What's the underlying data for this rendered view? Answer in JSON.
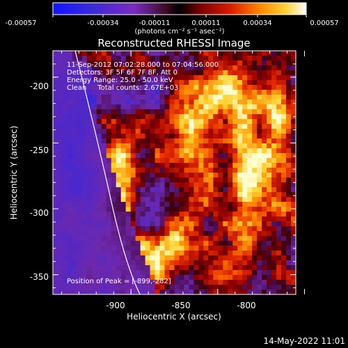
{
  "colorbar": {
    "ticks": [
      "-0.00057",
      "-0.00034",
      "-0.00011",
      "0.00011",
      "0.00034",
      "0.00057"
    ],
    "unit_label": "(photons cm⁻² s⁻¹ asec⁻²)"
  },
  "title": "Reconstructed RHESSI Image",
  "info": {
    "time_range": "11-Sep-2012 07:02:28.000 to 07:04:56.000",
    "detectors": "Detectors: 3F 5F 6F 7F 8F, Att 0",
    "energy": "Energy Range: 25.0 - 50.0 keV",
    "clean": "Clean     Total counts: 2.67E+03"
  },
  "peak_label": "Position of Peak = [-899,-282]",
  "axes": {
    "xlabel": "Heliocentric X (arcsec)",
    "ylabel": "Heliocentric Y (arcsec)",
    "xticks": [
      -900,
      -850,
      -800
    ],
    "yticks": [
      -200,
      -250,
      -300,
      -350
    ],
    "xlim": [
      -945,
      -805
    ],
    "ylim": [
      -365,
      -180
    ]
  },
  "footer_date": "14-May-2022 11:01",
  "colors": {
    "background": "#000000",
    "limb_line": "#ffffff"
  }
}
